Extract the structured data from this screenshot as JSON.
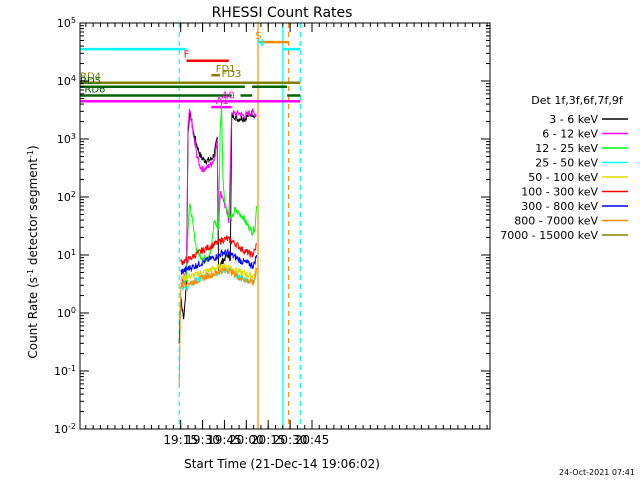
{
  "chart_data": {
    "type": "line",
    "title": "RHESSI Count Rates",
    "xlabel": "Start Time (21-Dec-14 19:06:02)",
    "ylabel": "Count Rate (s",
    "ylabel_sup": "-1",
    "ylabel_mid": " detector segment",
    "ylabel_sup2": "-1",
    "ylabel_end": ")",
    "yscale": "log",
    "ylim_exp": [
      -2,
      5
    ],
    "xlim_min": [
      1086,
      1367
    ],
    "x_ticks": [
      {
        "min": 1155,
        "label": "19:15"
      },
      {
        "min": 1170,
        "label": "19:30"
      },
      {
        "min": 1185,
        "label": "19:45"
      },
      {
        "min": 1200,
        "label": "20:00"
      },
      {
        "min": 1215,
        "label": "20:15"
      },
      {
        "min": 1230,
        "label": "20:30"
      },
      {
        "min": 1245,
        "label": "20:45"
      }
    ],
    "y_ticks": [
      {
        "exp": -2,
        "base": "10",
        "sup": "-2"
      },
      {
        "exp": -1,
        "base": "10",
        "sup": "-1"
      },
      {
        "exp": 0,
        "base": "10",
        "sup": "0"
      },
      {
        "exp": 1,
        "base": "10",
        "sup": "1"
      },
      {
        "exp": 2,
        "base": "10",
        "sup": "2"
      },
      {
        "exp": 3,
        "base": "10",
        "sup": "3"
      },
      {
        "exp": 4,
        "base": "10",
        "sup": "4"
      },
      {
        "exp": 5,
        "base": "10",
        "sup": "5"
      }
    ],
    "legend_title": "Det 1f,3f,6f,7f,9f",
    "legend_position": "right",
    "timestamp": "24-Oct-2021 07:41",
    "series": [
      {
        "name": "3 - 6 keV",
        "color": "#000000",
        "points": [
          [
            1154,
            0.3
          ],
          [
            1155,
            2
          ],
          [
            1156,
            1.2
          ],
          [
            1157,
            0.8
          ],
          [
            1158,
            1.5
          ],
          [
            1159,
            4
          ],
          [
            1160,
            1200
          ],
          [
            1161,
            2600
          ],
          [
            1162,
            2400
          ],
          [
            1164,
            1200
          ],
          [
            1166,
            800
          ],
          [
            1168,
            550
          ],
          [
            1170,
            450
          ],
          [
            1173,
            420
          ],
          [
            1176,
            450
          ],
          [
            1178,
            550
          ],
          [
            1180,
            1000
          ],
          [
            1181,
            6
          ],
          [
            1184,
            8
          ],
          [
            1187,
            10
          ],
          [
            1189,
            9
          ],
          [
            1190,
            2500
          ],
          [
            1192,
            2500
          ],
          [
            1194,
            2200
          ],
          [
            1196,
            2300
          ],
          [
            1198,
            2300
          ],
          [
            1199,
            2200
          ],
          [
            1200,
            2400
          ],
          [
            1202,
            2600
          ],
          [
            1204,
            2800
          ],
          [
            1206,
            2500
          ],
          [
            1207,
            2600
          ]
        ]
      },
      {
        "name": "6 - 12 keV",
        "color": "#ff00ff",
        "points": [
          [
            1155,
            3
          ],
          [
            1157,
            4
          ],
          [
            1159,
            5
          ],
          [
            1160,
            1500
          ],
          [
            1161,
            2900
          ],
          [
            1162,
            2600
          ],
          [
            1164,
            1000
          ],
          [
            1166,
            550
          ],
          [
            1168,
            350
          ],
          [
            1170,
            300
          ],
          [
            1173,
            320
          ],
          [
            1176,
            380
          ],
          [
            1178,
            450
          ],
          [
            1180,
            900
          ],
          [
            1181,
            30
          ],
          [
            1182,
            120
          ],
          [
            1184,
            100
          ],
          [
            1186,
            60
          ],
          [
            1188,
            40
          ],
          [
            1190,
            3000
          ],
          [
            1192,
            2700
          ],
          [
            1195,
            2800
          ],
          [
            1198,
            2500
          ],
          [
            1200,
            2600
          ],
          [
            1202,
            2800
          ],
          [
            1204,
            3000
          ],
          [
            1206,
            2700
          ],
          [
            1207,
            2600
          ]
        ]
      },
      {
        "name": "12 - 25 keV",
        "color": "#00ff00",
        "points": [
          [
            1155,
            3
          ],
          [
            1157,
            3.5
          ],
          [
            1159,
            4
          ],
          [
            1160,
            30
          ],
          [
            1161,
            70
          ],
          [
            1162,
            60
          ],
          [
            1164,
            25
          ],
          [
            1166,
            12
          ],
          [
            1168,
            10
          ],
          [
            1170,
            9
          ],
          [
            1173,
            9
          ],
          [
            1176,
            12
          ],
          [
            1178,
            40
          ],
          [
            1180,
            30
          ],
          [
            1181,
            30
          ],
          [
            1182,
            1200
          ],
          [
            1183,
            4000
          ],
          [
            1184,
            200
          ],
          [
            1185,
            100
          ],
          [
            1186,
            70
          ],
          [
            1188,
            50
          ],
          [
            1190,
            40
          ],
          [
            1192,
            60
          ],
          [
            1194,
            55
          ],
          [
            1196,
            50
          ],
          [
            1198,
            45
          ],
          [
            1200,
            35
          ],
          [
            1202,
            30
          ],
          [
            1204,
            25
          ],
          [
            1206,
            30
          ],
          [
            1207,
            70
          ]
        ]
      },
      {
        "name": "25 - 50 keV",
        "color": "#00ffff",
        "points": [
          [
            1155,
            3
          ],
          [
            1158,
            2.6
          ],
          [
            1161,
            3
          ],
          [
            1165,
            3.5
          ],
          [
            1170,
            4
          ],
          [
            1175,
            4.5
          ],
          [
            1180,
            5
          ],
          [
            1185,
            5.5
          ],
          [
            1188,
            5.5
          ],
          [
            1190,
            5
          ],
          [
            1193,
            4.5
          ],
          [
            1196,
            4
          ],
          [
            1199,
            3.8
          ],
          [
            1202,
            3.6
          ],
          [
            1205,
            3.5
          ],
          [
            1207,
            5
          ]
        ]
      },
      {
        "name": "50 - 100 keV",
        "color": "#dddd00",
        "points": [
          [
            1155,
            4
          ],
          [
            1160,
            4.2
          ],
          [
            1165,
            4.5
          ],
          [
            1170,
            5
          ],
          [
            1175,
            5.5
          ],
          [
            1180,
            6
          ],
          [
            1185,
            6.5
          ],
          [
            1188,
            6.3
          ],
          [
            1190,
            6
          ],
          [
            1193,
            5.5
          ],
          [
            1196,
            5
          ],
          [
            1199,
            4.8
          ],
          [
            1202,
            4.5
          ],
          [
            1205,
            4.3
          ],
          [
            1207,
            6
          ]
        ]
      },
      {
        "name": "100 - 300 keV",
        "color": "#ff0000",
        "points": [
          [
            1155,
            7.5
          ],
          [
            1158,
            8
          ],
          [
            1161,
            8.5
          ],
          [
            1165,
            10
          ],
          [
            1170,
            12
          ],
          [
            1175,
            14
          ],
          [
            1180,
            16
          ],
          [
            1183,
            18
          ],
          [
            1186,
            19
          ],
          [
            1189,
            18
          ],
          [
            1192,
            16
          ],
          [
            1195,
            14
          ],
          [
            1198,
            12
          ],
          [
            1201,
            11
          ],
          [
            1204,
            10
          ],
          [
            1206,
            12
          ],
          [
            1207,
            16
          ]
        ]
      },
      {
        "name": "300 - 800 keV",
        "color": "#0000ff",
        "points": [
          [
            1155,
            5
          ],
          [
            1158,
            5.5
          ],
          [
            1161,
            6
          ],
          [
            1165,
            6.5
          ],
          [
            1170,
            7.5
          ],
          [
            1175,
            8.5
          ],
          [
            1180,
            9.5
          ],
          [
            1184,
            11
          ],
          [
            1187,
            11
          ],
          [
            1190,
            10
          ],
          [
            1193,
            9
          ],
          [
            1196,
            8
          ],
          [
            1199,
            7.5
          ],
          [
            1202,
            7
          ],
          [
            1205,
            6.5
          ],
          [
            1207,
            10
          ]
        ]
      },
      {
        "name": "800 - 7000 keV",
        "color": "#ff8c00",
        "points": [
          [
            1154,
            0.05
          ],
          [
            1155,
            3
          ],
          [
            1158,
            3.2
          ],
          [
            1161,
            3.3
          ],
          [
            1165,
            3.5
          ],
          [
            1170,
            4
          ],
          [
            1175,
            4.5
          ],
          [
            1180,
            5
          ],
          [
            1185,
            5.5
          ],
          [
            1188,
            5.5
          ],
          [
            1190,
            5
          ],
          [
            1193,
            4.5
          ],
          [
            1196,
            4
          ],
          [
            1199,
            3.8
          ],
          [
            1202,
            3.5
          ],
          [
            1205,
            3.3
          ],
          [
            1207,
            6
          ]
        ]
      },
      {
        "name": "7000 - 15000 keV",
        "color": "#808000",
        "points": []
      }
    ],
    "annotations": [
      {
        "label": "N",
        "color": "#00ffff",
        "x0": 1086,
        "x1": 1209,
        "y_exp": 4.55,
        "label_at": 1207,
        "segments": [
          [
            1086,
            1159
          ],
          [
            1225,
            1237
          ]
        ]
      },
      {
        "label": "F",
        "color": "#ff0000",
        "label_at": 1157,
        "y_exp": 4.35,
        "segments": [
          [
            1159,
            1188
          ]
        ]
      },
      {
        "label": "S",
        "color": "#ff8c00",
        "label_at": 1206,
        "y_exp": 4.67,
        "segments": [
          [
            1208,
            1229
          ]
        ]
      },
      {
        "label": "FD1",
        "color": "#808000",
        "label_at": 1179,
        "y_exp": 4.1,
        "segments": [
          [
            1176,
            1182
          ]
        ]
      },
      {
        "label": "FD3",
        "color": "#808000",
        "label_at": 1183,
        "y_exp": 4.02,
        "segments": []
      },
      {
        "label": "RD4",
        "color": "#808000",
        "label_at": 1086,
        "y_exp": 3.97,
        "segments": [
          [
            1086,
            1237
          ]
        ]
      },
      {
        "label": "RD5",
        "color": "#006400",
        "label_at": 1086,
        "y_exp": 3.9,
        "segments": [
          [
            1086,
            1199
          ],
          [
            1204,
            1228
          ]
        ]
      },
      {
        "label": "RD6",
        "color": "#006400",
        "label_at": 1089,
        "y_exp": 3.75,
        "segments": [
          [
            1086,
            1190
          ],
          [
            1196,
            1204
          ],
          [
            1228,
            1237
          ]
        ]
      },
      {
        "label": "A1",
        "color": "#ff00ff",
        "label_at": 1179,
        "y_exp": 3.55,
        "segments": [
          [
            1176,
            1190
          ]
        ]
      },
      {
        "label": "A0",
        "color": "#ff00ff",
        "label_at": 1183,
        "y_exp": 3.65,
        "segments": [
          [
            1086,
            1237
          ]
        ]
      }
    ],
    "vlines": [
      {
        "min": 1154,
        "color": "#00ffff",
        "style": "dashed"
      },
      {
        "min": 1208,
        "color": "#ff8c00",
        "style": "solid"
      },
      {
        "min": 1225,
        "color": "#00ffff",
        "style": "solid"
      },
      {
        "min": 1229,
        "color": "#ff8c00",
        "style": "dashed"
      },
      {
        "min": 1237,
        "color": "#00ffff",
        "style": "dashed"
      }
    ]
  }
}
